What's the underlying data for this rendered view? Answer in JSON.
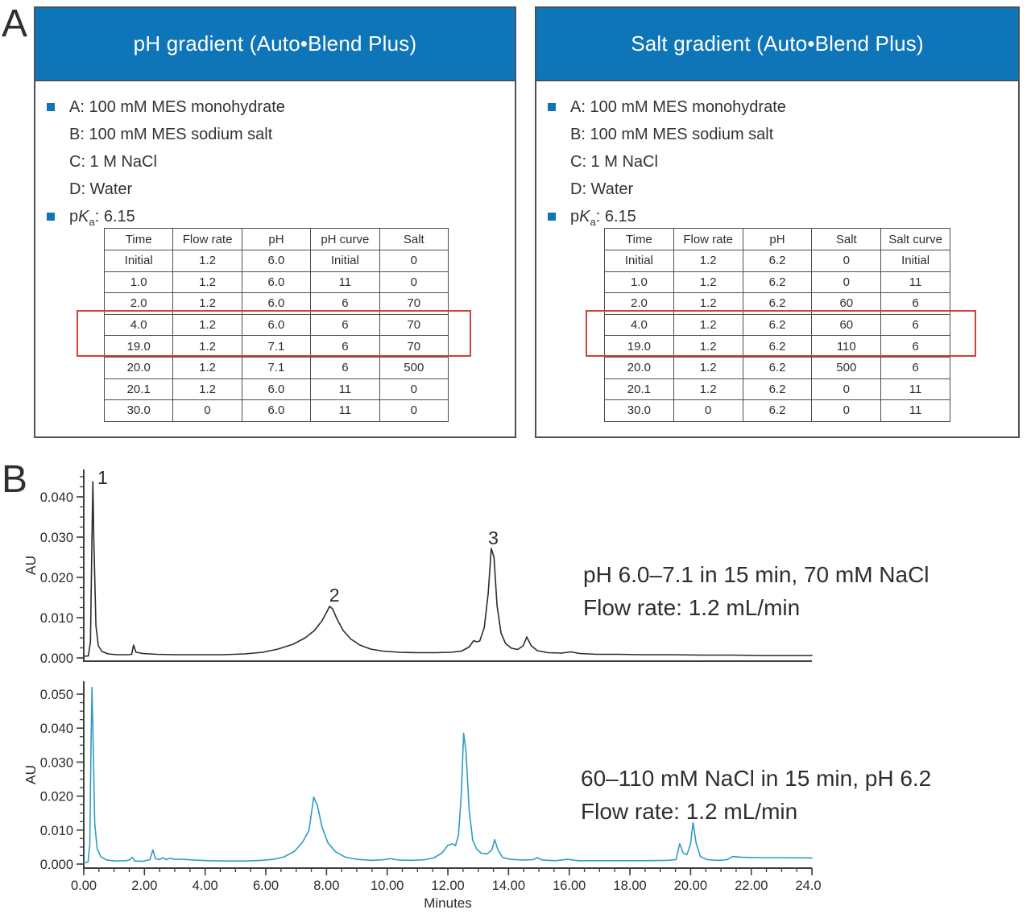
{
  "colors": {
    "header_blue": "#0e76b8",
    "bullet_blue": "#0e76b8",
    "highlight_red": "#cc4437",
    "trace_black": "#2b2b2b",
    "trace_blue": "#2f9cc4",
    "axis": "#3f3f3f",
    "text": "#2b2b2b",
    "box_border": "#49525a",
    "table_border": "#4d4d4d"
  },
  "panel_a": {
    "label": "A",
    "boxes": [
      {
        "title": "pH gradient (Auto•Blend Plus)",
        "buffers": [
          "A: 100 mM MES monohydrate",
          "B: 100 mM MES sodium salt",
          "C: 1 M NaCl",
          "D: Water"
        ],
        "pka": {
          "p": "p",
          "k": "K",
          "sub": "a",
          "rest": ": 6.15"
        },
        "table": {
          "headers": [
            "Time",
            "Flow rate",
            "pH",
            "pH curve",
            "Salt"
          ],
          "rows": [
            [
              "Initial",
              "1.2",
              "6.0",
              "Initial",
              "0"
            ],
            [
              "1.0",
              "1.2",
              "6.0",
              "11",
              "0"
            ],
            [
              "2.0",
              "1.2",
              "6.0",
              "6",
              "70"
            ],
            [
              "4.0",
              "1.2",
              "6.0",
              "6",
              "70"
            ],
            [
              "19.0",
              "1.2",
              "7.1",
              "6",
              "70"
            ],
            [
              "20.0",
              "1.2",
              "7.1",
              "6",
              "500"
            ],
            [
              "20.1",
              "1.2",
              "6.0",
              "11",
              "0"
            ],
            [
              "30.0",
              "0",
              "6.0",
              "11",
              "0"
            ]
          ],
          "highlighted_time_rows": [
            "4.0",
            "19.0"
          ]
        }
      },
      {
        "title": "Salt gradient (Auto•Blend Plus)",
        "buffers": [
          "A: 100 mM MES monohydrate",
          "B: 100 mM MES sodium salt",
          "C: 1 M NaCl",
          "D: Water"
        ],
        "pka": {
          "p": "p",
          "k": "K",
          "sub": "a",
          "rest": ": 6.15"
        },
        "table": {
          "headers": [
            "Time",
            "Flow rate",
            "pH",
            "Salt",
            "Salt curve"
          ],
          "rows": [
            [
              "Initial",
              "1.2",
              "6.2",
              "0",
              "Initial"
            ],
            [
              "1.0",
              "1.2",
              "6.2",
              "0",
              "11"
            ],
            [
              "2.0",
              "1.2",
              "6.2",
              "60",
              "6"
            ],
            [
              "4.0",
              "1.2",
              "6.2",
              "60",
              "6"
            ],
            [
              "19.0",
              "1.2",
              "6.2",
              "110",
              "6"
            ],
            [
              "20.0",
              "1.2",
              "6.2",
              "500",
              "6"
            ],
            [
              "20.1",
              "1.2",
              "6.2",
              "0",
              "11"
            ],
            [
              "30.0",
              "0",
              "6.2",
              "0",
              "11"
            ]
          ],
          "highlighted_time_rows": [
            "4.0",
            "19.0"
          ]
        }
      }
    ]
  },
  "panel_b": {
    "label": "B"
  },
  "chart_data": [
    {
      "type": "line",
      "name": "pH gradient chromatogram",
      "ylabel": "AU",
      "xlabel": "",
      "xlim": [
        0,
        24
      ],
      "ylim": [
        0,
        0.0458
      ],
      "y_minor_step": 0.0025,
      "yticks": [
        {
          "v": 0.0,
          "label": "0.000"
        },
        {
          "v": 0.01,
          "label": "0.010"
        },
        {
          "v": 0.02,
          "label": "0.020"
        },
        {
          "v": 0.03,
          "label": "0.030"
        },
        {
          "v": 0.04,
          "label": "0.040"
        }
      ],
      "xticks": [],
      "peak_labels": [
        {
          "text": "1",
          "t": 0.62,
          "v": 0.0432
        },
        {
          "text": "2",
          "t": 8.26,
          "v": 0.014
        },
        {
          "text": "3",
          "t": 13.5,
          "v": 0.0282
        }
      ],
      "annotation_lines": [
        "pH 6.0–7.1 in 15 min, 70 mM NaCl",
        "Flow rate: 1.2 mL/min"
      ],
      "series": [
        {
          "name": "UV trace (pH gradient)",
          "color_key": "trace_black",
          "points": [
            [
              0,
              0.0004
            ],
            [
              0.15,
              0.0005
            ],
            [
              0.22,
              0.004
            ],
            [
              0.27,
              0.03
            ],
            [
              0.3,
              0.0438
            ],
            [
              0.33,
              0.03
            ],
            [
              0.4,
              0.008
            ],
            [
              0.48,
              0.003
            ],
            [
              0.6,
              0.0016
            ],
            [
              0.8,
              0.001
            ],
            [
              1.1,
              0.0008
            ],
            [
              1.45,
              0.0008
            ],
            [
              1.58,
              0.0009
            ],
            [
              1.64,
              0.0032
            ],
            [
              1.72,
              0.0014
            ],
            [
              1.95,
              0.0011
            ],
            [
              2.4,
              0.0009
            ],
            [
              3.0,
              0.0008
            ],
            [
              3.8,
              0.0008
            ],
            [
              4.6,
              0.0008
            ],
            [
              5.3,
              0.001
            ],
            [
              5.9,
              0.0014
            ],
            [
              6.4,
              0.0022
            ],
            [
              6.9,
              0.0034
            ],
            [
              7.3,
              0.005
            ],
            [
              7.6,
              0.0068
            ],
            [
              7.85,
              0.0092
            ],
            [
              8.0,
              0.0113
            ],
            [
              8.1,
              0.0128
            ],
            [
              8.2,
              0.0122
            ],
            [
              8.35,
              0.0096
            ],
            [
              8.55,
              0.0068
            ],
            [
              8.8,
              0.0047
            ],
            [
              9.1,
              0.0032
            ],
            [
              9.45,
              0.0022
            ],
            [
              9.85,
              0.0017
            ],
            [
              10.4,
              0.0014
            ],
            [
              11.0,
              0.0013
            ],
            [
              11.6,
              0.0013
            ],
            [
              12.1,
              0.0014
            ],
            [
              12.45,
              0.0017
            ],
            [
              12.7,
              0.0027
            ],
            [
              12.85,
              0.0043
            ],
            [
              12.95,
              0.004
            ],
            [
              13.05,
              0.0042
            ],
            [
              13.2,
              0.0075
            ],
            [
              13.33,
              0.016
            ],
            [
              13.43,
              0.0272
            ],
            [
              13.52,
              0.025
            ],
            [
              13.62,
              0.013
            ],
            [
              13.75,
              0.0062
            ],
            [
              13.9,
              0.0036
            ],
            [
              14.1,
              0.0024
            ],
            [
              14.3,
              0.0021
            ],
            [
              14.48,
              0.003
            ],
            [
              14.6,
              0.0052
            ],
            [
              14.75,
              0.003
            ],
            [
              14.95,
              0.0018
            ],
            [
              15.3,
              0.0013
            ],
            [
              15.75,
              0.0012
            ],
            [
              16.05,
              0.0015
            ],
            [
              16.35,
              0.0011
            ],
            [
              16.9,
              0.0009
            ],
            [
              17.6,
              0.0009
            ],
            [
              18.4,
              0.0008
            ],
            [
              19.4,
              0.0008
            ],
            [
              20.4,
              0.0007
            ],
            [
              21.4,
              0.0007
            ],
            [
              22.4,
              0.0006
            ],
            [
              23.2,
              0.0006
            ],
            [
              24.0,
              0.0006
            ]
          ]
        }
      ]
    },
    {
      "type": "line",
      "name": "salt gradient chromatogram",
      "ylabel": "AU",
      "xlabel": "Minutes",
      "xlim": [
        0,
        24
      ],
      "ylim": [
        0,
        0.0523
      ],
      "y_minor_step": 0.0025,
      "x_minor_step": 0.5,
      "yticks": [
        {
          "v": 0.0,
          "label": "0.000"
        },
        {
          "v": 0.01,
          "label": "0.010"
        },
        {
          "v": 0.02,
          "label": "0.020"
        },
        {
          "v": 0.03,
          "label": "0.030"
        },
        {
          "v": 0.04,
          "label": "0.040"
        },
        {
          "v": 0.05,
          "label": "0.050"
        }
      ],
      "xticks": [
        {
          "v": 0,
          "label": "0.00"
        },
        {
          "v": 2,
          "label": "2.00"
        },
        {
          "v": 4,
          "label": "4.00"
        },
        {
          "v": 6,
          "label": "6.00"
        },
        {
          "v": 8,
          "label": "8.00"
        },
        {
          "v": 10,
          "label": "10.00"
        },
        {
          "v": 12,
          "label": "12.00"
        },
        {
          "v": 14,
          "label": "14.00"
        },
        {
          "v": 16,
          "label": "16.00"
        },
        {
          "v": 18,
          "label": "18.00"
        },
        {
          "v": 20,
          "label": "20.00"
        },
        {
          "v": 22,
          "label": "22.00"
        },
        {
          "v": 24,
          "label": "24.00"
        }
      ],
      "peak_labels": [],
      "annotation_lines": [
        "60–110 mM NaCl in 15 min, pH 6.2",
        "Flow rate: 1.2 mL/min"
      ],
      "series": [
        {
          "name": "UV trace (salt gradient)",
          "color_key": "trace_blue",
          "points": [
            [
              0,
              0.0004
            ],
            [
              0.14,
              0.0006
            ],
            [
              0.2,
              0.006
            ],
            [
              0.24,
              0.035
            ],
            [
              0.27,
              0.052
            ],
            [
              0.3,
              0.04
            ],
            [
              0.36,
              0.012
            ],
            [
              0.44,
              0.0045
            ],
            [
              0.56,
              0.0022
            ],
            [
              0.75,
              0.0012
            ],
            [
              1.05,
              0.0009
            ],
            [
              1.4,
              0.001
            ],
            [
              1.52,
              0.0013
            ],
            [
              1.6,
              0.002
            ],
            [
              1.68,
              0.0009
            ],
            [
              1.95,
              0.0008
            ],
            [
              2.18,
              0.0013
            ],
            [
              2.28,
              0.0042
            ],
            [
              2.36,
              0.0016
            ],
            [
              2.5,
              0.0013
            ],
            [
              2.6,
              0.0019
            ],
            [
              2.72,
              0.0013
            ],
            [
              2.85,
              0.0017
            ],
            [
              3.0,
              0.0014
            ],
            [
              3.25,
              0.0014
            ],
            [
              3.6,
              0.0012
            ],
            [
              4.1,
              0.001
            ],
            [
              4.7,
              0.0009
            ],
            [
              5.3,
              0.0009
            ],
            [
              5.85,
              0.0011
            ],
            [
              6.25,
              0.0014
            ],
            [
              6.6,
              0.0021
            ],
            [
              6.95,
              0.0038
            ],
            [
              7.2,
              0.0063
            ],
            [
              7.42,
              0.0098
            ],
            [
              7.58,
              0.0197
            ],
            [
              7.7,
              0.0172
            ],
            [
              7.85,
              0.011
            ],
            [
              8.05,
              0.0062
            ],
            [
              8.3,
              0.0036
            ],
            [
              8.6,
              0.0021
            ],
            [
              9.0,
              0.0014
            ],
            [
              9.5,
              0.0011
            ],
            [
              9.9,
              0.0013
            ],
            [
              10.1,
              0.0016
            ],
            [
              10.35,
              0.0012
            ],
            [
              10.8,
              0.0011
            ],
            [
              11.25,
              0.0013
            ],
            [
              11.55,
              0.0019
            ],
            [
              11.8,
              0.0032
            ],
            [
              12.0,
              0.0055
            ],
            [
              12.15,
              0.006
            ],
            [
              12.25,
              0.0054
            ],
            [
              12.35,
              0.0085
            ],
            [
              12.44,
              0.02
            ],
            [
              12.52,
              0.0385
            ],
            [
              12.6,
              0.033
            ],
            [
              12.7,
              0.016
            ],
            [
              12.82,
              0.007
            ],
            [
              12.95,
              0.0044
            ],
            [
              13.1,
              0.0032
            ],
            [
              13.3,
              0.003
            ],
            [
              13.45,
              0.0042
            ],
            [
              13.54,
              0.0072
            ],
            [
              13.65,
              0.0042
            ],
            [
              13.8,
              0.002
            ],
            [
              14.05,
              0.0014
            ],
            [
              14.45,
              0.0012
            ],
            [
              14.8,
              0.0013
            ],
            [
              14.95,
              0.0019
            ],
            [
              15.1,
              0.0012
            ],
            [
              15.55,
              0.001
            ],
            [
              15.95,
              0.0014
            ],
            [
              16.3,
              0.001
            ],
            [
              16.9,
              0.001
            ],
            [
              17.6,
              0.001
            ],
            [
              18.4,
              0.001
            ],
            [
              19.2,
              0.0011
            ],
            [
              19.52,
              0.0013
            ],
            [
              19.64,
              0.006
            ],
            [
              19.76,
              0.0032
            ],
            [
              19.88,
              0.0028
            ],
            [
              20.0,
              0.006
            ],
            [
              20.08,
              0.0122
            ],
            [
              20.18,
              0.0062
            ],
            [
              20.32,
              0.0022
            ],
            [
              20.55,
              0.0013
            ],
            [
              20.9,
              0.0011
            ],
            [
              21.2,
              0.0013
            ],
            [
              21.38,
              0.0022
            ],
            [
              21.7,
              0.002
            ],
            [
              22.3,
              0.0019
            ],
            [
              23.1,
              0.0019
            ],
            [
              24.0,
              0.0018
            ]
          ]
        }
      ]
    }
  ]
}
